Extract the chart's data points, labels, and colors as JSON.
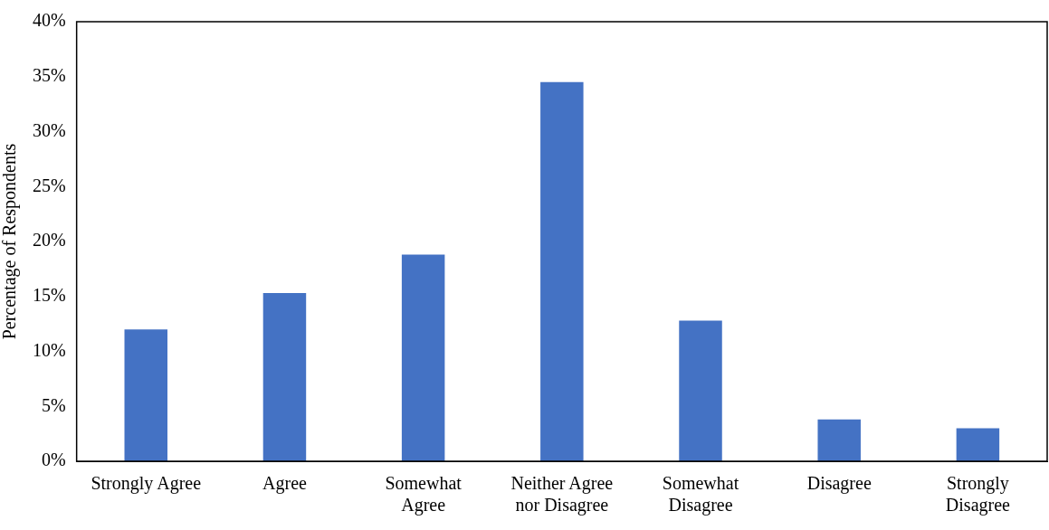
{
  "chart_data": {
    "type": "bar",
    "ylabel": "Percentage of Respondents",
    "categories": [
      "Strongly Agree",
      "Agree",
      "Somewhat\nAgree",
      "Neither Agree\nnor Disagree",
      "Somewhat\nDisagree",
      "Disagree",
      "Strongly\nDisagree"
    ],
    "values": [
      12.0,
      15.3,
      18.8,
      34.5,
      12.8,
      3.8,
      3.0
    ],
    "color": "#4472c4",
    "ylim": [
      0,
      40
    ],
    "yticks": [
      {
        "value": 0,
        "label": "0%"
      },
      {
        "value": 5,
        "label": "5%"
      },
      {
        "value": 10,
        "label": "10%"
      },
      {
        "value": 15,
        "label": "15%"
      },
      {
        "value": 20,
        "label": "20%"
      },
      {
        "value": 25,
        "label": "25%"
      },
      {
        "value": 30,
        "label": "30%"
      },
      {
        "value": 35,
        "label": "35%"
      },
      {
        "value": 40,
        "label": "40%"
      }
    ],
    "grid": false,
    "legend": false
  }
}
